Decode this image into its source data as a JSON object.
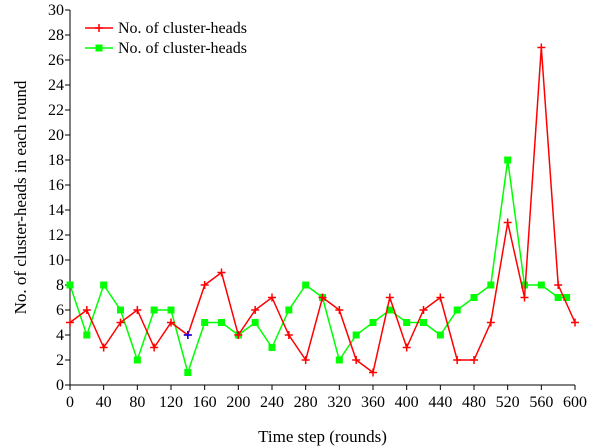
{
  "chart_data": {
    "type": "line",
    "title": "",
    "xlabel": "Time step (rounds)",
    "ylabel": "No. of cluster-heads in each round",
    "xlim": [
      0,
      600
    ],
    "ylim": [
      0,
      30
    ],
    "xticks": [
      0,
      40,
      80,
      120,
      160,
      200,
      240,
      280,
      320,
      360,
      400,
      440,
      480,
      520,
      560,
      600
    ],
    "yticks": [
      0,
      2,
      4,
      6,
      8,
      10,
      12,
      14,
      16,
      18,
      20,
      22,
      24,
      26,
      28,
      30
    ],
    "grid": false,
    "legend_position": "top-left",
    "series": [
      {
        "name": "No. of cluster-heads",
        "color": "#ff0000",
        "marker": "plus",
        "x": [
          0,
          20,
          40,
          60,
          80,
          100,
          120,
          140,
          160,
          180,
          200,
          220,
          240,
          260,
          280,
          300,
          320,
          340,
          360,
          380,
          400,
          420,
          440,
          460,
          480,
          500,
          520,
          540,
          560,
          580,
          600
        ],
        "y": [
          5,
          6,
          3,
          5,
          6,
          3,
          5,
          4,
          8,
          9,
          4,
          6,
          7,
          4,
          2,
          7,
          6,
          2,
          1,
          7,
          3,
          6,
          7,
          2,
          2,
          5,
          13,
          7,
          27,
          8,
          5
        ]
      },
      {
        "name": "No. of cluster-heads",
        "color": "#00ff00",
        "marker": "square",
        "x": [
          0,
          20,
          40,
          60,
          80,
          100,
          120,
          140,
          160,
          180,
          200,
          220,
          240,
          260,
          280,
          300,
          320,
          340,
          360,
          380,
          400,
          420,
          440,
          460,
          480,
          500,
          520,
          540,
          560,
          580,
          590
        ],
        "y": [
          8,
          4,
          8,
          6,
          2,
          6,
          6,
          1,
          5,
          5,
          4,
          5,
          3,
          6,
          8,
          7,
          2,
          4,
          5,
          6,
          5,
          5,
          4,
          6,
          7,
          8,
          18,
          8,
          8,
          7,
          7
        ]
      }
    ],
    "annotations": [
      {
        "x": 140,
        "y": 4,
        "color": "#0000ff",
        "marker": "plus"
      }
    ]
  }
}
